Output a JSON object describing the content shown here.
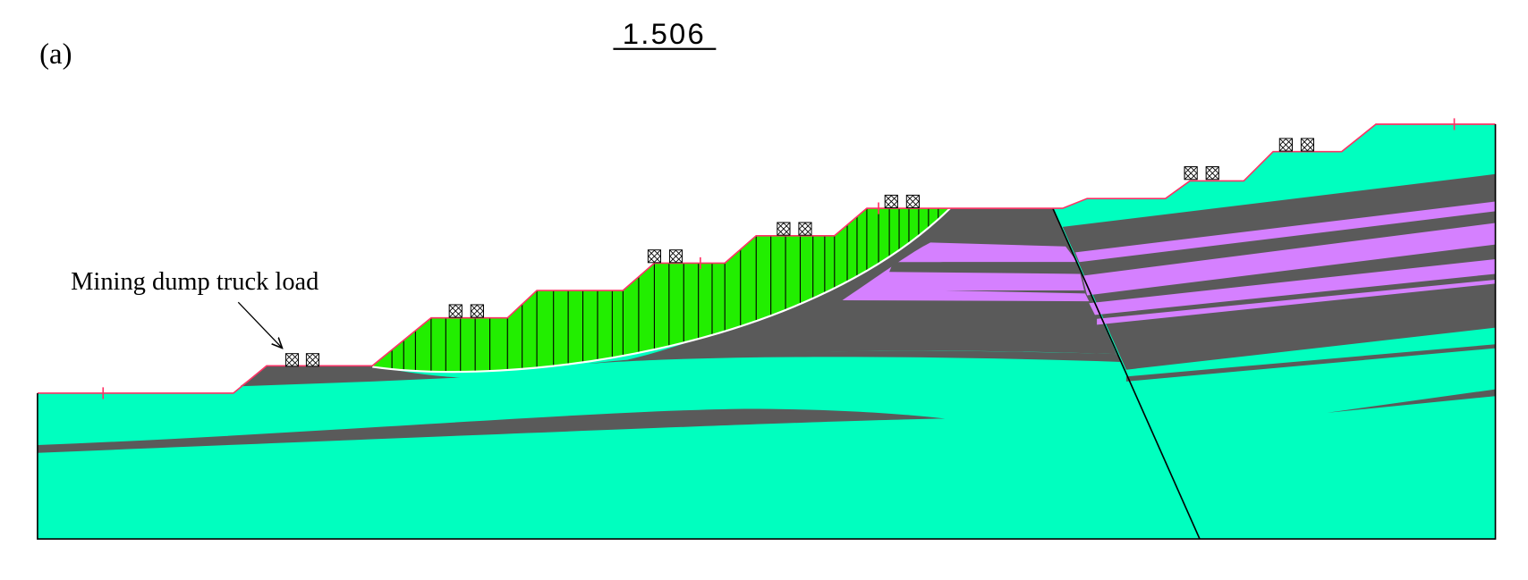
{
  "panel_label": "(a)",
  "factor_of_safety": "1.506",
  "annotation": "Mining dump truck load"
}
